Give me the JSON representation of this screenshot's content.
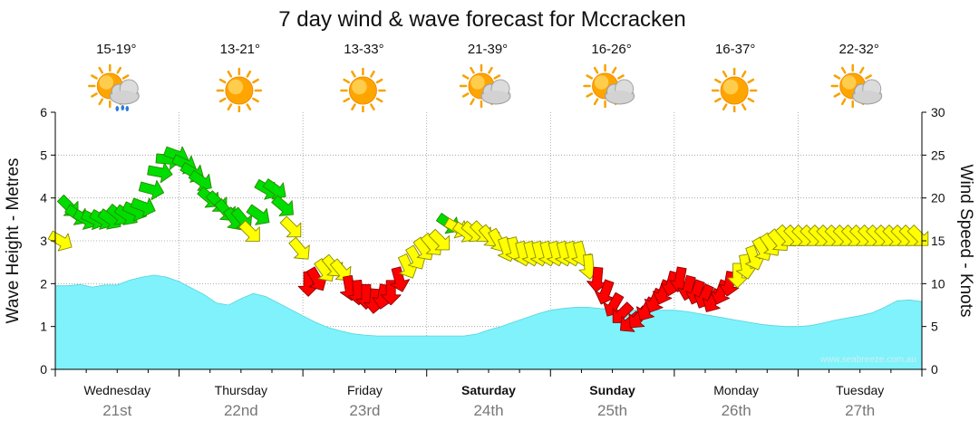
{
  "chart_data": {
    "type": "area",
    "title": "7 day wind & wave forecast for Mccracken",
    "ylabel_left": "Wave Height - Metres",
    "ylabel_right": "Wind Speed - Knots",
    "ylim_left": [
      0,
      6
    ],
    "ylim_right": [
      0,
      30
    ],
    "yticks_left": [
      "0",
      "1",
      "2",
      "3",
      "4",
      "5",
      "6"
    ],
    "yticks_right": [
      "0",
      "5",
      "10",
      "15",
      "20",
      "25",
      "30"
    ],
    "watermark": "www.seabreeze.com.au",
    "days": [
      {
        "name": "Wednesday",
        "date": "21st",
        "temp": "15-19°",
        "icon": "sun-cloud-rain-icon",
        "bold": false
      },
      {
        "name": "Thursday",
        "date": "22nd",
        "temp": "13-21°",
        "icon": "sun-icon",
        "bold": false
      },
      {
        "name": "Friday",
        "date": "23rd",
        "temp": "13-33°",
        "icon": "sun-icon",
        "bold": false
      },
      {
        "name": "Saturday",
        "date": "24th",
        "temp": "21-39°",
        "icon": "sun-cloud-icon",
        "bold": true
      },
      {
        "name": "Sunday",
        "date": "25th",
        "temp": "16-26°",
        "icon": "sun-cloud-icon",
        "bold": true
      },
      {
        "name": "Monday",
        "date": "26th",
        "temp": "16-37°",
        "icon": "sun-icon",
        "bold": false
      },
      {
        "name": "Tuesday",
        "date": "27th",
        "temp": "22-32°",
        "icon": "sun-cloud-icon",
        "bold": false
      }
    ],
    "wave_series": {
      "name": "Wave Height",
      "color": "#7ff2fb",
      "x": [
        0,
        0.1,
        0.2,
        0.3,
        0.4,
        0.5,
        0.6,
        0.7,
        0.8,
        0.9,
        1,
        1.1,
        1.2,
        1.3,
        1.4,
        1.5,
        1.6,
        1.7,
        1.8,
        1.9,
        2,
        2.1,
        2.2,
        2.3,
        2.4,
        2.5,
        2.6,
        2.7,
        2.8,
        2.9,
        3,
        3.1,
        3.2,
        3.3,
        3.4,
        3.5,
        3.6,
        3.7,
        3.8,
        3.9,
        4,
        4.1,
        4.2,
        4.3,
        4.4,
        4.5,
        4.6,
        4.7,
        4.8,
        4.9,
        5,
        5.1,
        5.2,
        5.3,
        5.4,
        5.5,
        5.6,
        5.7,
        5.8,
        5.9,
        6,
        6.1,
        6.2,
        6.3,
        6.4,
        6.5,
        6.6,
        6.7,
        6.8,
        6.9,
        7
      ],
      "y": [
        1.95,
        1.95,
        1.98,
        1.92,
        1.97,
        1.97,
        2.08,
        2.15,
        2.2,
        2.15,
        2.05,
        1.9,
        1.75,
        1.55,
        1.5,
        1.65,
        1.77,
        1.7,
        1.55,
        1.4,
        1.25,
        1.1,
        0.98,
        0.9,
        0.83,
        0.8,
        0.78,
        0.78,
        0.78,
        0.78,
        0.78,
        0.78,
        0.78,
        0.78,
        0.82,
        0.92,
        1.0,
        1.1,
        1.2,
        1.3,
        1.38,
        1.42,
        1.45,
        1.45,
        1.42,
        1.4,
        1.38,
        1.38,
        1.38,
        1.38,
        1.38,
        1.35,
        1.3,
        1.25,
        1.2,
        1.15,
        1.1,
        1.05,
        1.02,
        1.0,
        1.0,
        1.02,
        1.08,
        1.15,
        1.2,
        1.25,
        1.32,
        1.45,
        1.6,
        1.62,
        1.58
      ]
    },
    "wind_series": {
      "name": "Wind",
      "color_legend": {
        "green": "#00dd00",
        "yellow": "#ffff00",
        "red": "#ff0000"
      },
      "x": [
        0,
        0.0667,
        0.1333,
        0.2,
        0.2667,
        0.3333,
        0.4,
        0.4667,
        0.5333,
        0.6,
        0.6667,
        0.7333,
        0.8,
        0.8667,
        0.9333,
        1,
        1.0667,
        1.1333,
        1.2,
        1.2667,
        1.3333,
        1.4,
        1.4667,
        1.5333,
        1.6,
        1.6667,
        1.7333,
        1.8,
        1.8667,
        1.9333,
        2,
        2.0667,
        2.1333,
        2.2,
        2.2667,
        2.3333,
        2.4,
        2.4667,
        2.5333,
        2.6,
        2.6667,
        2.7333,
        2.8,
        2.8667,
        2.9333,
        3,
        3.0667,
        3.1333,
        3.2,
        3.2667,
        3.3333,
        3.4,
        3.4667,
        3.5333,
        3.6,
        3.6667,
        3.7333,
        3.8,
        3.8667,
        3.9333,
        4,
        4.0667,
        4.1333,
        4.2,
        4.2667,
        4.3333,
        4.4,
        4.4667,
        4.5333,
        4.6,
        4.6667,
        4.7333,
        4.8,
        4.8667,
        4.9333,
        5,
        5.0667,
        5.1333,
        5.2,
        5.2667,
        5.3333,
        5.4,
        5.4667,
        5.5333,
        5.6,
        5.6667,
        5.7333,
        5.8,
        5.8667,
        5.9333,
        6,
        6.0667,
        6.1333,
        6.2,
        6.2667,
        6.3333,
        6.4,
        6.4667,
        6.5333,
        6.6,
        6.6667,
        6.7333,
        6.8,
        6.8667,
        6.9333
      ],
      "y": [
        15,
        19,
        18,
        17.5,
        17.5,
        17.5,
        17.5,
        18,
        18,
        18.5,
        19,
        21,
        23,
        24.5,
        25,
        24,
        23,
        22,
        20,
        19.5,
        18.5,
        17.5,
        17.5,
        16,
        18,
        21,
        21,
        19,
        16.5,
        14,
        10,
        10.5,
        11.5,
        12,
        11.5,
        9.5,
        9,
        8.5,
        8,
        8.5,
        9,
        10.5,
        12,
        13,
        14,
        14.5,
        15,
        17,
        16.5,
        16,
        16,
        16,
        15.5,
        15,
        14,
        14,
        13.5,
        13.5,
        13.5,
        13.5,
        13.5,
        13.5,
        13.5,
        13.5,
        12,
        10.5,
        9,
        7.5,
        6.5,
        5.5,
        6,
        7,
        8,
        9,
        10,
        10.5,
        9.5,
        9,
        8.5,
        8,
        9,
        10,
        11,
        12,
        13,
        14,
        14.5,
        15,
        15.5,
        15.5,
        15.5,
        15.5,
        15.5,
        15.5,
        15.5,
        15.5,
        15.5,
        15.5,
        15.5,
        15.5,
        15.5,
        15.5,
        15.5,
        15.5,
        15.5
      ],
      "direction_deg": [
        210,
        225,
        215,
        210,
        205,
        210,
        215,
        220,
        215,
        205,
        200,
        195,
        190,
        185,
        200,
        205,
        210,
        215,
        220,
        225,
        230,
        235,
        230,
        225,
        215,
        210,
        215,
        220,
        225,
        230,
        270,
        240,
        235,
        230,
        230,
        260,
        265,
        270,
        275,
        280,
        270,
        255,
        245,
        240,
        235,
        230,
        225,
        215,
        210,
        215,
        220,
        225,
        230,
        240,
        250,
        255,
        255,
        255,
        255,
        255,
        255,
        255,
        255,
        255,
        265,
        275,
        290,
        300,
        315,
        320,
        310,
        300,
        295,
        290,
        285,
        280,
        285,
        290,
        295,
        300,
        290,
        280,
        270,
        260,
        250,
        240,
        235,
        230,
        228,
        226,
        225,
        225,
        225,
        225,
        225,
        225,
        225,
        225,
        225,
        225,
        225,
        225,
        225,
        225,
        225
      ]
    }
  }
}
